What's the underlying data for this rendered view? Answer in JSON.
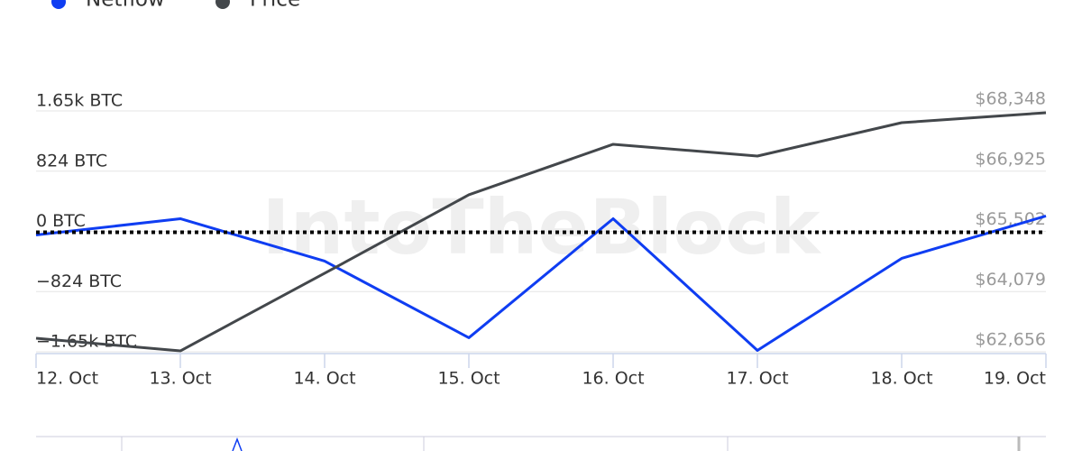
{
  "chart_data": {
    "type": "line",
    "watermark": "IntoTheBlock",
    "categories": [
      "12. Oct",
      "13. Oct",
      "14. Oct",
      "15. Oct",
      "16. Oct",
      "17. Oct",
      "18. Oct",
      "19. Oct"
    ],
    "series": [
      {
        "name": "Netflow",
        "color": "#0f3df2",
        "values": [
          -49,
          173,
          -407,
          -1456,
          173,
          -1629,
          -370,
          210
        ]
      },
      {
        "name": "Price",
        "color": "#43474b",
        "axis": "y2",
        "values": [
          62976,
          62677,
          64511,
          66366,
          67560,
          67282,
          68071,
          68306
        ]
      }
    ],
    "ylim": [
      -1648,
      1648
    ],
    "yticks": [
      {
        "value": 1648,
        "label": "1.65k BTC"
      },
      {
        "value": 824,
        "label": "824 BTC"
      },
      {
        "value": 0,
        "label": "0 BTC"
      },
      {
        "value": -824,
        "label": "−824 BTC"
      },
      {
        "value": -1648,
        "label": "−1.65k BTC"
      }
    ],
    "y2lim": [
      62656,
      68348
    ],
    "y2ticks": [
      {
        "value": 68348,
        "label": "$68,348"
      },
      {
        "value": 66925,
        "label": "$66,925"
      },
      {
        "value": 65502,
        "label": "$65,502"
      },
      {
        "value": 64079,
        "label": "$64,079"
      },
      {
        "value": 62656,
        "label": "$62,656"
      }
    ],
    "grid": true,
    "zero_line": true
  }
}
